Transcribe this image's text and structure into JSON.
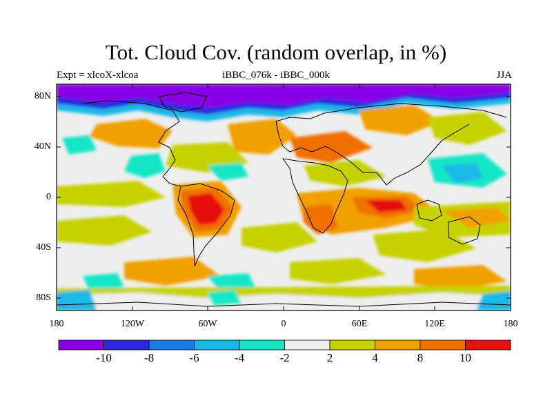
{
  "title": "Tot. Cloud Cov. (random overlap, in %)",
  "subtitle_left": "Expt = xlcoX-xlcoa",
  "subtitle_center": "iBBC_076k - iBBC_000k",
  "subtitle_right": "JJA",
  "y_axis": {
    "ticks": [
      "80N",
      "40N",
      "0",
      "40S",
      "80S"
    ]
  },
  "x_axis": {
    "ticks": [
      "180",
      "120W",
      "60W",
      "0",
      "60E",
      "120E",
      "180"
    ]
  },
  "colorbar": {
    "colors": [
      "#8a00e6",
      "#2a2ae0",
      "#1a7ae6",
      "#1ab8e6",
      "#19e6c8",
      "#eeeeee",
      "#c6d200",
      "#f0a000",
      "#f07000",
      "#e61010"
    ],
    "labels": [
      "-10",
      "-8",
      "-6",
      "-4",
      "-2",
      "2",
      "4",
      "8",
      "10"
    ]
  },
  "colors": {
    "land_outline": "#000000",
    "background": "#eeeeee"
  }
}
